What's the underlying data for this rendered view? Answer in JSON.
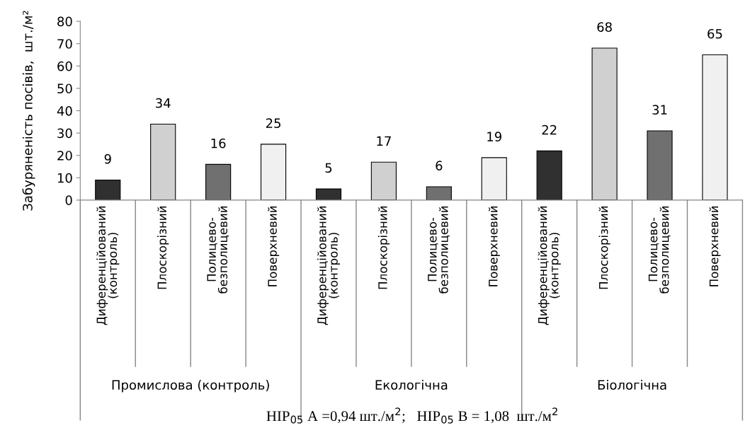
{
  "chart_data": {
    "type": "bar",
    "ylabel": "Забуряненість посівів,  шт./м²",
    "categories": [
      "Диференційований\n(контроль)",
      "Плоскорізний",
      "Полицево-\nбезполицевий",
      "Поверхневий",
      "Диференційований\n(контроль)",
      "Плоскорізний",
      "Полицево-\nбезполицевий",
      "Поверхневий",
      "Диференційований\n(контроль)",
      "Плоскорізний",
      "Полицево-\nбезполицевий",
      "Поверхневий"
    ],
    "values": [
      9,
      34,
      16,
      25,
      5,
      17,
      6,
      19,
      22,
      68,
      31,
      65
    ],
    "colors": [
      "#303030",
      "#d0d0d0",
      "#707070",
      "#f0f0f0",
      "#303030",
      "#d0d0d0",
      "#707070",
      "#f0f0f0",
      "#303030",
      "#d0d0d0",
      "#707070",
      "#f0f0f0"
    ],
    "ylim": [
      0,
      80
    ],
    "yticks": [
      0,
      10,
      20,
      30,
      40,
      50,
      60,
      70,
      80
    ],
    "grid": false,
    "data_labels": true,
    "annotations": [
      "Промислова (контроль)",
      "Екологічна",
      "Біологічна",
      "НІР$_{05}$ А =0,94 шт./м$^{2}$;   НІР$_{05}$ В = 1,08  шт./м$^{2}$"
    ]
  }
}
